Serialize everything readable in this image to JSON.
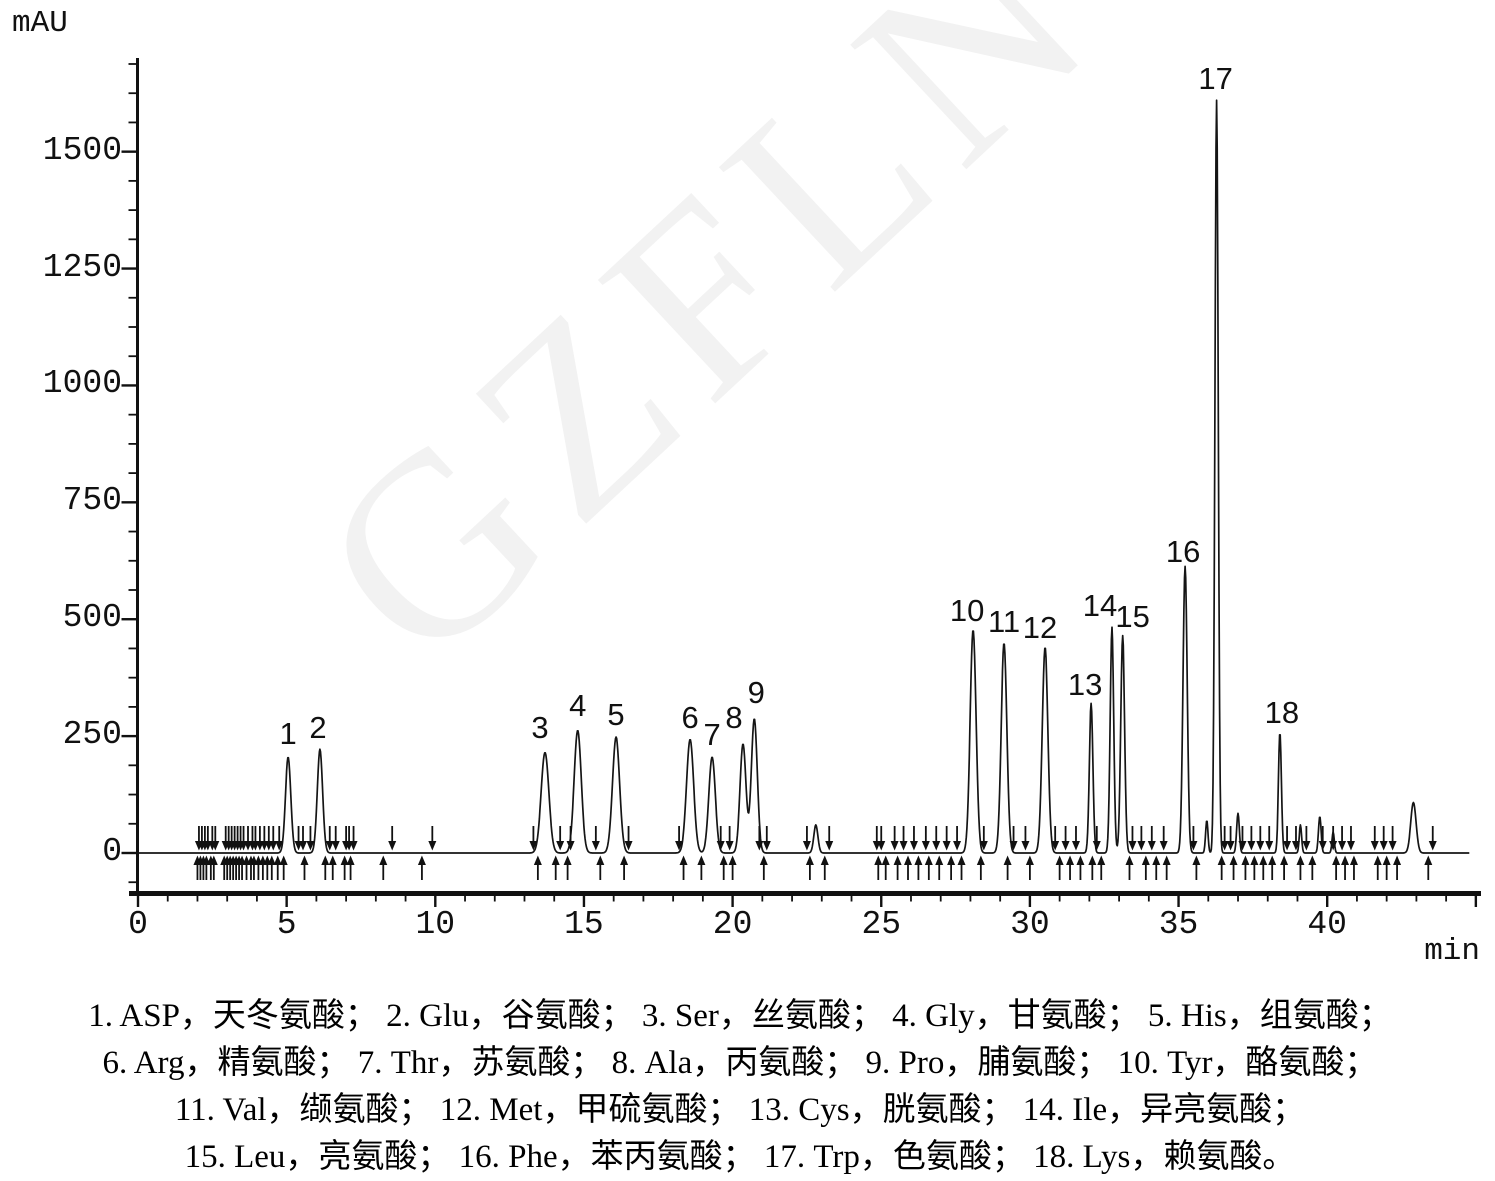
{
  "watermark": {
    "text": "GZFLN",
    "color": "#f2f2f2"
  },
  "chart_data": {
    "type": "line",
    "title": "",
    "y_unit": "mAU",
    "x_unit": "min",
    "x_axis": {
      "min": 0,
      "max": 45,
      "major_step": 5,
      "minor_step": 1,
      "tick_labels": [
        "0",
        "5",
        "10",
        "15",
        "20",
        "25",
        "30",
        "35",
        "40"
      ],
      "tick_values": [
        0,
        5,
        10,
        15,
        20,
        25,
        30,
        35,
        40
      ]
    },
    "y_axis": {
      "min": -62.5,
      "max": 1696,
      "major_step": 250,
      "minor_step": 62.5,
      "tick_labels": [
        "0",
        "250",
        "500",
        "750",
        "1000",
        "1250",
        "1500"
      ],
      "tick_values": [
        0,
        250,
        500,
        750,
        1000,
        1250,
        1500
      ]
    },
    "grid": false,
    "line_color": "#151515",
    "peaks": [
      {
        "id": 1,
        "abbr": "ASP",
        "name_cn": "天冬氨酸",
        "rt_min": 5.05,
        "height_mau": 205,
        "sigma": 0.09,
        "label_dx": 0,
        "label_dy": 3
      },
      {
        "id": 2,
        "abbr": "Glu",
        "name_cn": "谷氨酸",
        "rt_min": 6.12,
        "height_mau": 222,
        "sigma": 0.09,
        "label_dx": -2,
        "label_dy": 5
      },
      {
        "id": 3,
        "abbr": "Ser",
        "name_cn": "丝氨酸",
        "rt_min": 13.69,
        "height_mau": 215,
        "sigma": 0.13,
        "label_dx": -5,
        "label_dy": 2
      },
      {
        "id": 4,
        "abbr": "Gly",
        "name_cn": "甘氨酸",
        "rt_min": 14.79,
        "height_mau": 262,
        "sigma": 0.12,
        "label_dx": 0,
        "label_dy": 2
      },
      {
        "id": 5,
        "abbr": "His",
        "name_cn": "组氨酸",
        "rt_min": 16.08,
        "height_mau": 248,
        "sigma": 0.12,
        "label_dx": 0,
        "label_dy": 4
      },
      {
        "id": 6,
        "abbr": "Arg",
        "name_cn": "精氨酸",
        "rt_min": 18.57,
        "height_mau": 243,
        "sigma": 0.12,
        "label_dx": 0,
        "label_dy": 5
      },
      {
        "id": 7,
        "abbr": "Thr",
        "name_cn": "苏氨酸",
        "rt_min": 19.31,
        "height_mau": 205,
        "sigma": 0.11,
        "label_dx": 0,
        "label_dy": 4
      },
      {
        "id": 8,
        "abbr": "Ala",
        "name_cn": "丙氨酸",
        "rt_min": 20.35,
        "height_mau": 233,
        "sigma": 0.1,
        "label_dx": -9,
        "label_dy": 0
      },
      {
        "id": 9,
        "abbr": "Pro",
        "name_cn": "脯氨酸",
        "rt_min": 20.73,
        "height_mau": 287,
        "sigma": 0.1,
        "label_dx": 2,
        "label_dy": 0
      },
      {
        "id": 10,
        "abbr": "Tyr",
        "name_cn": "酪氨酸",
        "rt_min": 28.09,
        "height_mau": 477,
        "sigma": 0.1,
        "label_dx": -6,
        "label_dy": 7
      },
      {
        "id": 11,
        "abbr": "Val",
        "name_cn": "缬氨酸",
        "rt_min": 29.13,
        "height_mau": 449,
        "sigma": 0.095,
        "label_dx": 0,
        "label_dy": 5
      },
      {
        "id": 12,
        "abbr": "Met",
        "name_cn": "甲硫氨酸",
        "rt_min": 30.51,
        "height_mau": 440,
        "sigma": 0.095,
        "label_dx": -5,
        "label_dy": 7
      },
      {
        "id": 13,
        "abbr": "Cys",
        "name_cn": "胱氨酸",
        "rt_min": 32.06,
        "height_mau": 320,
        "sigma": 0.06,
        "label_dx": -6,
        "label_dy": 8
      },
      {
        "id": 14,
        "abbr": "Ile",
        "name_cn": "异亮氨酸",
        "rt_min": 32.76,
        "height_mau": 483,
        "sigma": 0.06,
        "label_dx": -12,
        "label_dy": 5
      },
      {
        "id": 15,
        "abbr": "Leu",
        "name_cn": "亮氨酸",
        "rt_min": 33.12,
        "height_mau": 465,
        "sigma": 0.065,
        "label_dx": 10,
        "label_dy": 7
      },
      {
        "id": 16,
        "abbr": "Phe",
        "name_cn": "苯丙氨酸",
        "rt_min": 35.22,
        "height_mau": 613,
        "sigma": 0.07,
        "label_dx": -2,
        "label_dy": 12
      },
      {
        "id": 17,
        "abbr": "Trp",
        "name_cn": "色氨酸",
        "rt_min": 36.28,
        "height_mau": 1610,
        "sigma": 0.055,
        "label_dx": -1,
        "label_dy": 5
      },
      {
        "id": 18,
        "abbr": "Lys",
        "name_cn": "赖氨酸",
        "rt_min": 38.41,
        "height_mau": 258,
        "sigma": 0.05,
        "label_dx": 2,
        "label_dy": 7
      }
    ],
    "minor_peaks": [
      {
        "rt_min": 22.8,
        "height_mau": 60,
        "sigma": 0.07
      },
      {
        "rt_min": 35.95,
        "height_mau": 70,
        "sigma": 0.04
      },
      {
        "rt_min": 37.0,
        "height_mau": 85,
        "sigma": 0.045
      },
      {
        "rt_min": 39.1,
        "height_mau": 60,
        "sigma": 0.04
      },
      {
        "rt_min": 39.75,
        "height_mau": 78,
        "sigma": 0.045
      },
      {
        "rt_min": 40.2,
        "height_mau": 45,
        "sigma": 0.04
      },
      {
        "rt_min": 42.9,
        "height_mau": 108,
        "sigma": 0.09
      }
    ],
    "integration_marks": {
      "down": [
        2.05,
        2.15,
        2.25,
        2.35,
        2.5,
        2.6,
        2.95,
        3.05,
        3.15,
        3.25,
        3.35,
        3.45,
        3.55,
        3.7,
        3.85,
        3.95,
        4.1,
        4.25,
        4.4,
        4.55,
        4.75,
        5.4,
        5.55,
        5.8,
        6.45,
        6.65,
        7.0,
        7.1,
        7.25,
        8.55,
        9.9,
        13.3,
        14.2,
        14.55,
        15.4,
        16.5,
        18.2,
        19.6,
        19.9,
        20.9,
        21.15,
        22.5,
        23.25,
        24.85,
        25.0,
        25.45,
        25.75,
        26.1,
        26.5,
        26.85,
        27.2,
        27.55,
        28.45,
        29.45,
        29.85,
        30.85,
        31.2,
        31.55,
        32.25,
        33.45,
        33.75,
        34.1,
        34.5,
        35.5,
        36.55,
        36.75,
        37.15,
        37.45,
        37.75,
        38.05,
        38.65,
        38.95,
        39.3,
        39.85,
        40.2,
        40.5,
        40.8,
        41.6,
        41.9,
        42.2,
        43.55
      ],
      "up": [
        2.0,
        2.1,
        2.2,
        2.3,
        2.45,
        2.55,
        2.9,
        3.0,
        3.1,
        3.2,
        3.3,
        3.4,
        3.5,
        3.65,
        3.8,
        3.9,
        4.05,
        4.2,
        4.35,
        4.5,
        4.7,
        4.9,
        5.6,
        6.3,
        6.55,
        6.95,
        7.15,
        8.25,
        9.55,
        13.45,
        14.05,
        14.45,
        15.55,
        16.35,
        18.35,
        18.95,
        19.7,
        20.0,
        21.05,
        22.6,
        23.1,
        24.9,
        25.15,
        25.55,
        25.9,
        26.25,
        26.6,
        26.95,
        27.35,
        27.7,
        28.35,
        29.25,
        30.0,
        31.0,
        31.35,
        31.7,
        32.1,
        32.4,
        33.35,
        33.9,
        34.25,
        34.6,
        35.6,
        36.45,
        36.85,
        37.25,
        37.55,
        37.85,
        38.15,
        38.55,
        39.1,
        39.5,
        40.3,
        40.6,
        40.9,
        41.7,
        42.0,
        42.35,
        43.4
      ]
    }
  },
  "legend": {
    "lines": [
      "1. ASP，天冬氨酸； 2. Glu，谷氨酸； 3. Ser，丝氨酸； 4. Gly，甘氨酸； 5. His，组氨酸；",
      "6. Arg，精氨酸； 7. Thr，苏氨酸； 8. Ala，丙氨酸； 9. Pro，脯氨酸； 10. Tyr，酪氨酸；",
      "11. Val，缬氨酸； 12. Met，甲硫氨酸； 13. Cys，胱氨酸； 14. Ile，异亮氨酸；",
      "15. Leu，亮氨酸； 16. Phe，苯丙氨酸； 17. Trp，色氨酸； 18. Lys，赖氨酸。"
    ]
  }
}
